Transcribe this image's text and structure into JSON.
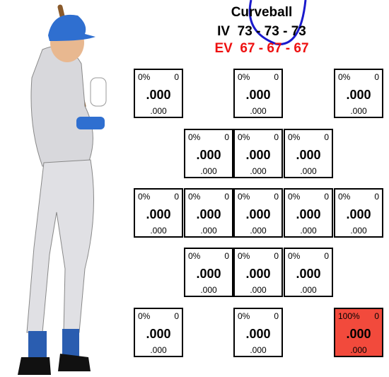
{
  "header": {
    "title": "Curveball",
    "iv": "IV  73 - 73 - 73",
    "ev": "EV  67 - 67 - 67"
  },
  "cells": [
    {
      "pct": "0%",
      "count": "0",
      "avg": ".000",
      "sub": ".000"
    },
    {
      "pct": "0%",
      "count": "0",
      "avg": ".000",
      "sub": ".000"
    },
    {
      "pct": "0%",
      "count": "0",
      "avg": ".000",
      "sub": ".000"
    },
    {
      "pct": "0%",
      "count": "0",
      "avg": ".000",
      "sub": ".000"
    },
    {
      "pct": "0%",
      "count": "0",
      "avg": ".000",
      "sub": ".000"
    },
    {
      "pct": "0%",
      "count": "0",
      "avg": ".000",
      "sub": ".000"
    },
    {
      "pct": "0%",
      "count": "0",
      "avg": ".000",
      "sub": ".000"
    },
    {
      "pct": "0%",
      "count": "0",
      "avg": ".000",
      "sub": ".000"
    },
    {
      "pct": "0%",
      "count": "0",
      "avg": ".000",
      "sub": ".000"
    },
    {
      "pct": "0%",
      "count": "0",
      "avg": ".000",
      "sub": ".000"
    },
    {
      "pct": "0%",
      "count": "0",
      "avg": ".000",
      "sub": ".000"
    },
    {
      "pct": "0%",
      "count": "0",
      "avg": ".000",
      "sub": ".000"
    },
    {
      "pct": "0%",
      "count": "0",
      "avg": ".000",
      "sub": ".000"
    },
    {
      "pct": "0%",
      "count": "0",
      "avg": ".000",
      "sub": ".000"
    },
    {
      "pct": "0%",
      "count": "0",
      "avg": ".000",
      "sub": ".000"
    },
    {
      "pct": "0%",
      "count": "0",
      "avg": ".000",
      "sub": ".000"
    },
    {
      "pct": "100%",
      "count": "0",
      "avg": ".000",
      "sub": ".000",
      "color": "#f24a3c"
    }
  ]
}
